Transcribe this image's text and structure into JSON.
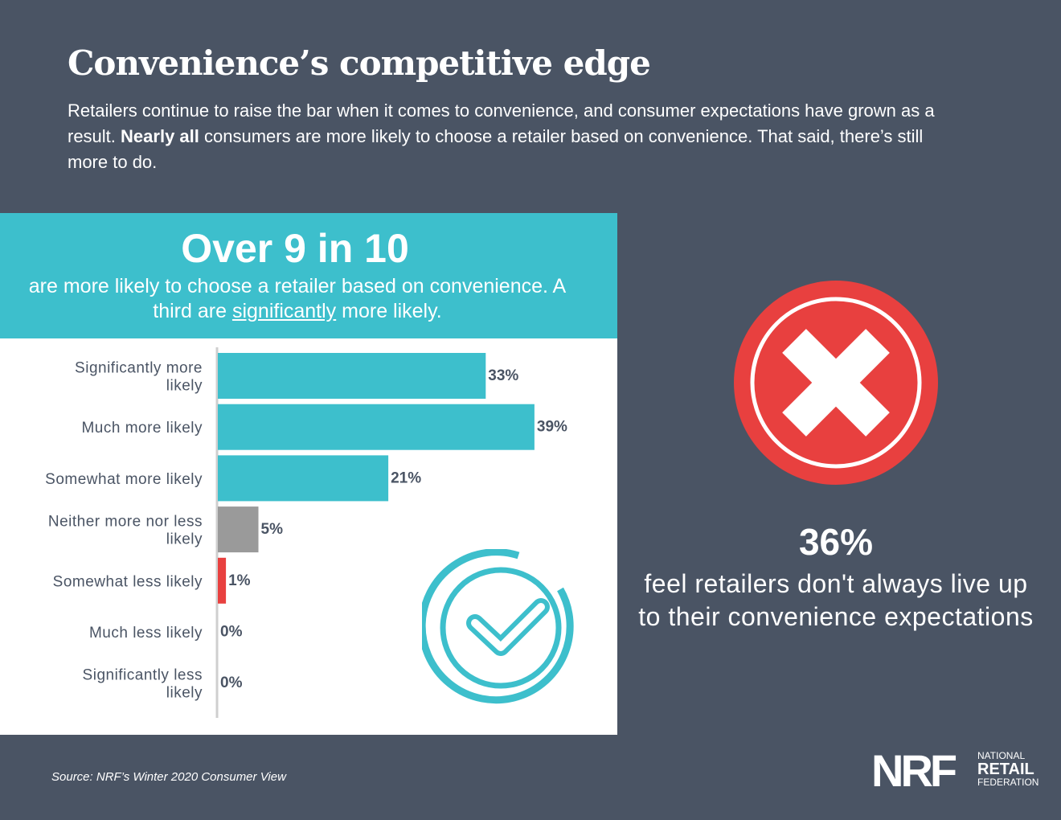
{
  "header": {
    "title": "Convenience’s competitive edge",
    "intro_part1": "Retailers continue to raise the bar when it comes to convenience, and consumer expectations have grown as a result. ",
    "intro_bold": "Nearly all",
    "intro_part2": " consumers are more likely to choose a retailer based on convenience. That said, there’s still more to do."
  },
  "panel": {
    "headline": "Over 9 in 10",
    "sub_part1": "are more likely to choose a retailer based on convenience. A third are ",
    "sub_underlined": "significantly",
    "sub_part2": " more likely."
  },
  "chart_data": {
    "type": "bar",
    "orientation": "horizontal",
    "title": "",
    "categories": [
      "Significantly more likely",
      "Much more likely",
      "Somewhat more likely",
      "Neither more nor less likely",
      "Somewhat less likely",
      "Much less likely",
      "Significantly less likely"
    ],
    "values": [
      33,
      39,
      21,
      5,
      1,
      0,
      0
    ],
    "value_labels": [
      "33%",
      "39%",
      "21%",
      "5%",
      "1%",
      "0%",
      "0%"
    ],
    "bar_colors": [
      "#3dbfcc",
      "#3dbfcc",
      "#3dbfcc",
      "#9a9a9a",
      "#e8403f",
      "#3dbfcc",
      "#3dbfcc"
    ],
    "xlim": [
      0,
      45
    ],
    "unit": "%"
  },
  "stat": {
    "percent": "36%",
    "text": "feel retailers don't always live up to their convenience expectations"
  },
  "footer": {
    "source": "Source: NRF’s Winter 2020 Consumer View",
    "logo_mark": "NRF",
    "logo_line1": "NATIONAL",
    "logo_line2": "RETAIL",
    "logo_line3": "FEDERATION"
  },
  "colors": {
    "background": "#4a5464",
    "accent": "#3dbfcc",
    "neutral": "#9a9a9a",
    "negative": "#e8403f"
  },
  "icons": {
    "x": "x-circle-icon",
    "check": "check-circle-icon"
  }
}
